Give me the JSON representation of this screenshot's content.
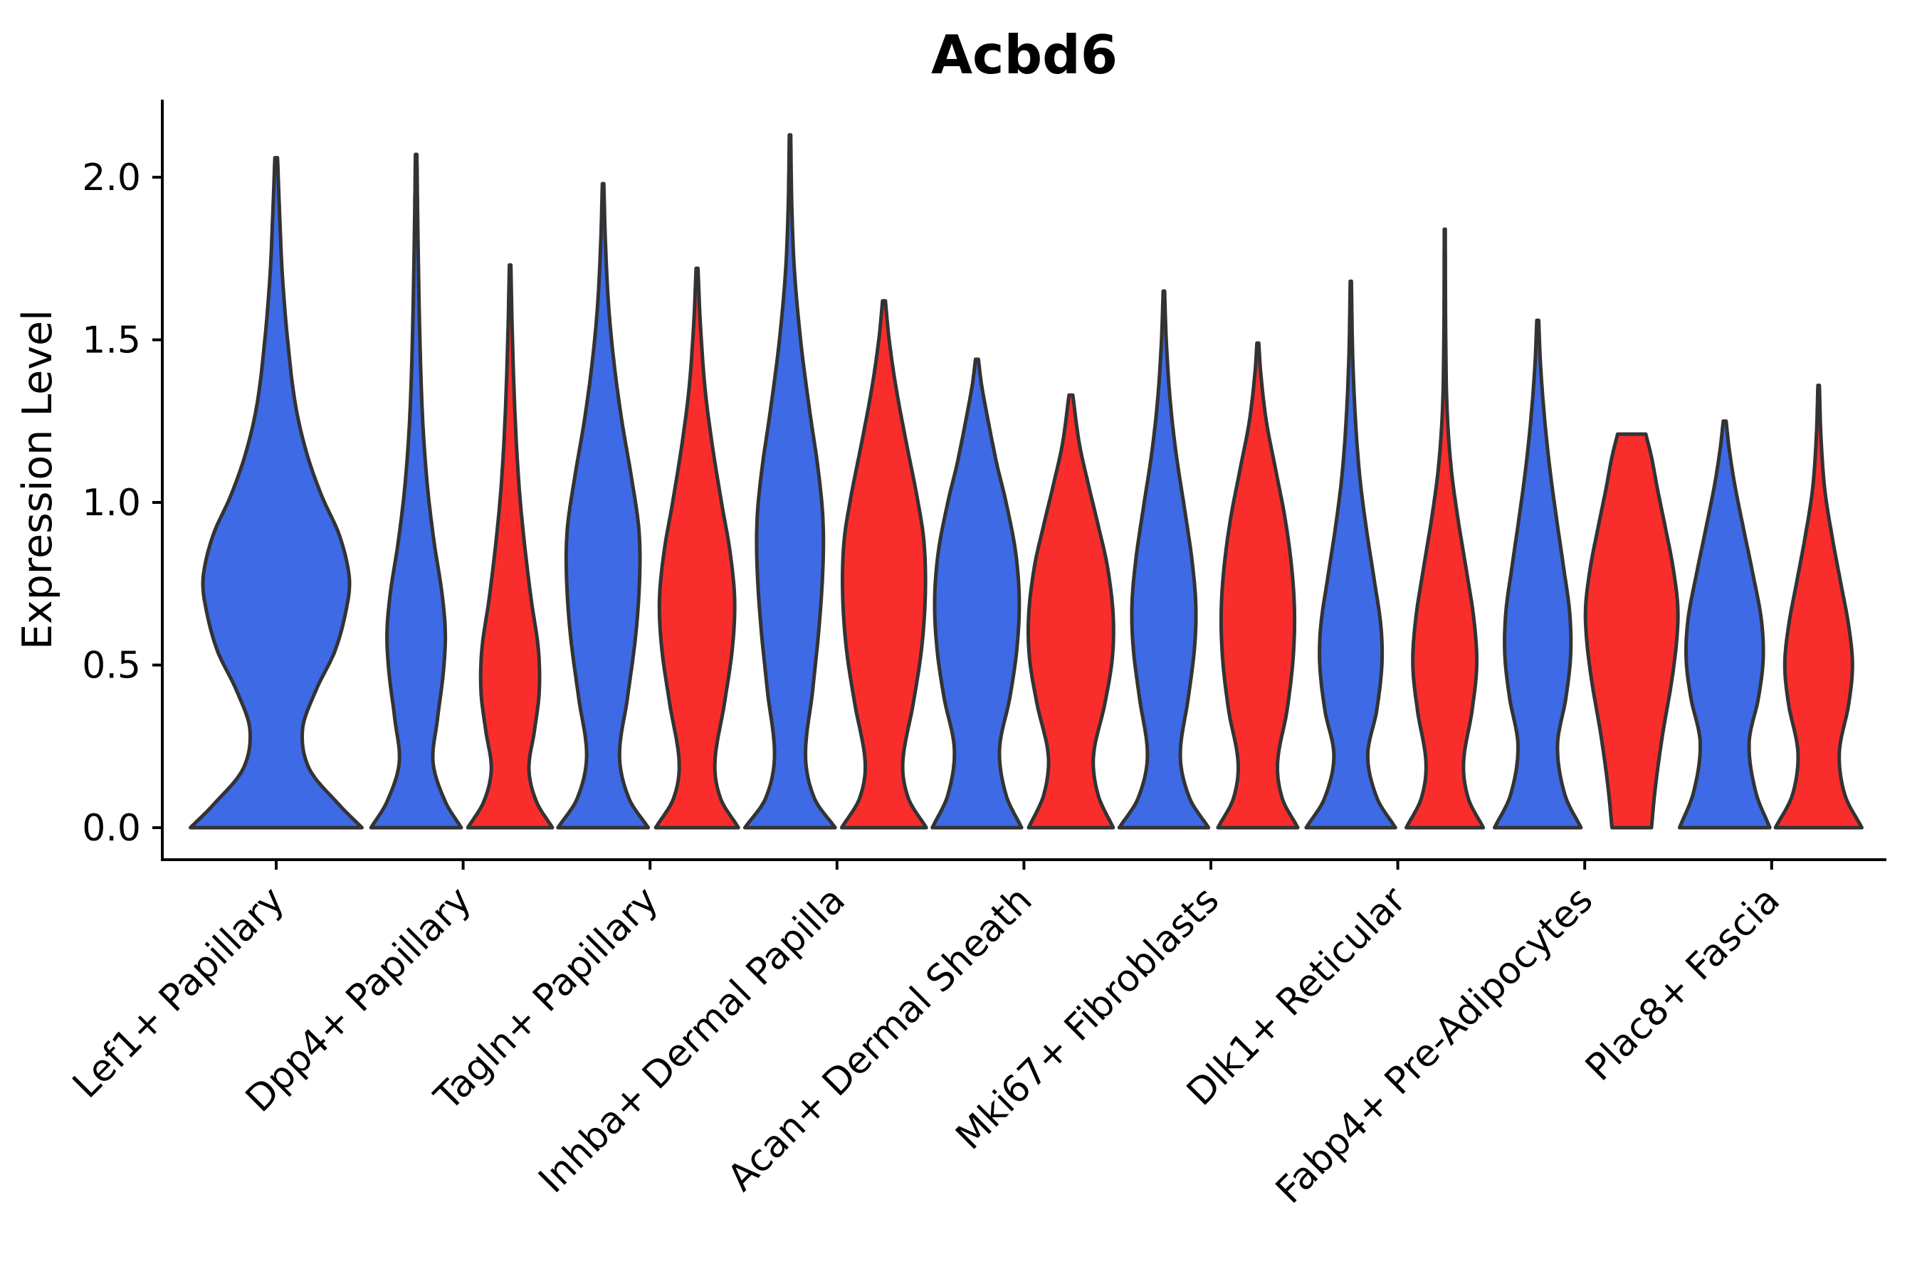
{
  "figure": {
    "title": "Acbd6",
    "ylabel": "Expression Level"
  },
  "chart_data": {
    "type": "violin",
    "title": "Acbd6",
    "xlabel": "",
    "ylabel": "Expression Level",
    "legend": "none",
    "grid": false,
    "background": "#FFFFFF",
    "edge_color": "#333333",
    "axis_color": "#000000",
    "ylim": [
      -0.17,
      2.24
    ],
    "yticks": [
      0.0,
      0.5,
      1.0,
      1.5,
      2.0
    ],
    "ytick_labels": [
      "0.0",
      "0.5",
      "1.0",
      "1.5",
      "2.0"
    ],
    "categories": [
      "Lef1+ Papillary",
      "Dpp4+ Papillary",
      "Tagln+ Papillary",
      "Inhba+ Dermal Papilla",
      "Acan+ Dermal Sheath",
      "Mki67+ Fibroblasts",
      "Dlk1+ Reticular",
      "Fabp4+ Pre-Adipocytes",
      "Plac8+ Fascia"
    ],
    "groups": [
      {
        "name": "blue",
        "color": "#3E6AE5"
      },
      {
        "name": "red",
        "color": "#FA2D2D"
      }
    ],
    "violins": [
      {
        "category": "Lef1+ Papillary",
        "group": "blue",
        "placement": "full",
        "max_expression": 2.06,
        "profile": [
          [
            0,
            0.98
          ],
          [
            0.07,
            0.72
          ],
          [
            0.18,
            0.38
          ],
          [
            0.3,
            0.3
          ],
          [
            0.42,
            0.45
          ],
          [
            0.55,
            0.68
          ],
          [
            0.7,
            0.82
          ],
          [
            0.78,
            0.83
          ],
          [
            0.9,
            0.72
          ],
          [
            1.02,
            0.52
          ],
          [
            1.15,
            0.35
          ],
          [
            1.3,
            0.22
          ],
          [
            1.5,
            0.13
          ],
          [
            1.7,
            0.07
          ],
          [
            1.88,
            0.04
          ],
          [
            2.06,
            0.015
          ]
        ]
      },
      {
        "category": "Dpp4+ Papillary",
        "group": "blue",
        "placement": "left",
        "max_expression": 2.07,
        "profile": [
          [
            0,
            0.96
          ],
          [
            0.08,
            0.62
          ],
          [
            0.2,
            0.36
          ],
          [
            0.33,
            0.45
          ],
          [
            0.48,
            0.58
          ],
          [
            0.6,
            0.62
          ],
          [
            0.72,
            0.55
          ],
          [
            0.88,
            0.38
          ],
          [
            1.05,
            0.24
          ],
          [
            1.25,
            0.14
          ],
          [
            1.5,
            0.08
          ],
          [
            1.8,
            0.04
          ],
          [
            2.07,
            0.015
          ]
        ]
      },
      {
        "category": "Dpp4+ Papillary",
        "group": "red",
        "placement": "right",
        "max_expression": 1.73,
        "profile": [
          [
            0,
            0.9
          ],
          [
            0.08,
            0.56
          ],
          [
            0.18,
            0.4
          ],
          [
            0.3,
            0.52
          ],
          [
            0.42,
            0.62
          ],
          [
            0.55,
            0.6
          ],
          [
            0.7,
            0.45
          ],
          [
            0.88,
            0.3
          ],
          [
            1.05,
            0.19
          ],
          [
            1.25,
            0.11
          ],
          [
            1.5,
            0.05
          ],
          [
            1.73,
            0.015
          ]
        ]
      },
      {
        "category": "Tagln+ Papillary",
        "group": "blue",
        "placement": "left",
        "max_expression": 1.98,
        "profile": [
          [
            0,
            0.96
          ],
          [
            0.09,
            0.55
          ],
          [
            0.22,
            0.35
          ],
          [
            0.4,
            0.52
          ],
          [
            0.6,
            0.7
          ],
          [
            0.78,
            0.78
          ],
          [
            0.92,
            0.76
          ],
          [
            1.08,
            0.6
          ],
          [
            1.25,
            0.4
          ],
          [
            1.42,
            0.24
          ],
          [
            1.6,
            0.12
          ],
          [
            1.8,
            0.05
          ],
          [
            1.98,
            0.015
          ]
        ]
      },
      {
        "category": "Tagln+ Papillary",
        "group": "red",
        "placement": "right",
        "max_expression": 1.72,
        "profile": [
          [
            0,
            0.88
          ],
          [
            0.09,
            0.5
          ],
          [
            0.2,
            0.38
          ],
          [
            0.38,
            0.58
          ],
          [
            0.55,
            0.75
          ],
          [
            0.7,
            0.8
          ],
          [
            0.85,
            0.7
          ],
          [
            1.0,
            0.52
          ],
          [
            1.18,
            0.32
          ],
          [
            1.35,
            0.17
          ],
          [
            1.55,
            0.07
          ],
          [
            1.72,
            0.02
          ]
        ]
      },
      {
        "category": "Inhba+ Dermal Papilla",
        "group": "blue",
        "placement": "left",
        "max_expression": 2.13,
        "profile": [
          [
            0,
            0.96
          ],
          [
            0.09,
            0.52
          ],
          [
            0.22,
            0.33
          ],
          [
            0.42,
            0.48
          ],
          [
            0.62,
            0.62
          ],
          [
            0.8,
            0.7
          ],
          [
            0.95,
            0.7
          ],
          [
            1.1,
            0.6
          ],
          [
            1.28,
            0.42
          ],
          [
            1.48,
            0.24
          ],
          [
            1.7,
            0.1
          ],
          [
            1.9,
            0.04
          ],
          [
            2.13,
            0.015
          ]
        ]
      },
      {
        "category": "Inhba+ Dermal Papilla",
        "group": "red",
        "placement": "right",
        "max_expression": 1.62,
        "profile": [
          [
            0,
            0.9
          ],
          [
            0.09,
            0.52
          ],
          [
            0.2,
            0.4
          ],
          [
            0.38,
            0.62
          ],
          [
            0.55,
            0.8
          ],
          [
            0.72,
            0.88
          ],
          [
            0.88,
            0.85
          ],
          [
            1.02,
            0.7
          ],
          [
            1.18,
            0.48
          ],
          [
            1.35,
            0.26
          ],
          [
            1.5,
            0.11
          ],
          [
            1.62,
            0.03
          ]
        ]
      },
      {
        "category": "Acan+ Dermal Sheath",
        "group": "blue",
        "placement": "left",
        "max_expression": 1.44,
        "profile": [
          [
            0,
            0.95
          ],
          [
            0.1,
            0.62
          ],
          [
            0.24,
            0.48
          ],
          [
            0.4,
            0.7
          ],
          [
            0.55,
            0.85
          ],
          [
            0.7,
            0.9
          ],
          [
            0.85,
            0.82
          ],
          [
            1.0,
            0.62
          ],
          [
            1.12,
            0.42
          ],
          [
            1.25,
            0.24
          ],
          [
            1.36,
            0.1
          ],
          [
            1.44,
            0.03
          ]
        ]
      },
      {
        "category": "Acan+ Dermal Sheath",
        "group": "red",
        "placement": "right",
        "max_expression": 1.33,
        "profile": [
          [
            0,
            0.9
          ],
          [
            0.1,
            0.58
          ],
          [
            0.22,
            0.48
          ],
          [
            0.38,
            0.72
          ],
          [
            0.52,
            0.88
          ],
          [
            0.65,
            0.9
          ],
          [
            0.8,
            0.78
          ],
          [
            0.93,
            0.58
          ],
          [
            1.05,
            0.38
          ],
          [
            1.18,
            0.18
          ],
          [
            1.33,
            0.04
          ]
        ]
      },
      {
        "category": "Mki67+ Fibroblasts",
        "group": "blue",
        "placement": "left",
        "max_expression": 1.65,
        "profile": [
          [
            0,
            0.95
          ],
          [
            0.09,
            0.55
          ],
          [
            0.22,
            0.35
          ],
          [
            0.4,
            0.52
          ],
          [
            0.55,
            0.65
          ],
          [
            0.68,
            0.68
          ],
          [
            0.82,
            0.6
          ],
          [
            0.98,
            0.44
          ],
          [
            1.15,
            0.26
          ],
          [
            1.32,
            0.13
          ],
          [
            1.5,
            0.05
          ],
          [
            1.65,
            0.015
          ]
        ]
      },
      {
        "category": "Mki67+ Fibroblasts",
        "group": "red",
        "placement": "right",
        "max_expression": 1.49,
        "profile": [
          [
            0,
            0.85
          ],
          [
            0.09,
            0.52
          ],
          [
            0.2,
            0.42
          ],
          [
            0.36,
            0.62
          ],
          [
            0.52,
            0.75
          ],
          [
            0.66,
            0.78
          ],
          [
            0.8,
            0.72
          ],
          [
            0.95,
            0.58
          ],
          [
            1.1,
            0.38
          ],
          [
            1.25,
            0.18
          ],
          [
            1.4,
            0.06
          ],
          [
            1.49,
            0.02
          ]
        ]
      },
      {
        "category": "Dlk1+ Reticular",
        "group": "blue",
        "placement": "left",
        "max_expression": 1.68,
        "profile": [
          [
            0,
            0.95
          ],
          [
            0.09,
            0.56
          ],
          [
            0.22,
            0.36
          ],
          [
            0.36,
            0.55
          ],
          [
            0.5,
            0.66
          ],
          [
            0.62,
            0.64
          ],
          [
            0.76,
            0.5
          ],
          [
            0.92,
            0.33
          ],
          [
            1.08,
            0.19
          ],
          [
            1.25,
            0.1
          ],
          [
            1.45,
            0.04
          ],
          [
            1.68,
            0.012
          ]
        ]
      },
      {
        "category": "Dlk1+ Reticular",
        "group": "red",
        "placement": "right",
        "max_expression": 1.84,
        "profile": [
          [
            0,
            0.82
          ],
          [
            0.09,
            0.5
          ],
          [
            0.2,
            0.4
          ],
          [
            0.36,
            0.58
          ],
          [
            0.5,
            0.68
          ],
          [
            0.64,
            0.62
          ],
          [
            0.8,
            0.45
          ],
          [
            0.95,
            0.28
          ],
          [
            1.1,
            0.14
          ],
          [
            1.28,
            0.05
          ],
          [
            1.5,
            0.02
          ],
          [
            1.84,
            0.01
          ]
        ]
      },
      {
        "category": "Fabp4+ Pre-Adipocytes",
        "group": "blue",
        "placement": "left",
        "max_expression": 1.56,
        "profile": [
          [
            0,
            0.92
          ],
          [
            0.1,
            0.58
          ],
          [
            0.25,
            0.42
          ],
          [
            0.4,
            0.6
          ],
          [
            0.53,
            0.7
          ],
          [
            0.66,
            0.68
          ],
          [
            0.8,
            0.55
          ],
          [
            0.95,
            0.4
          ],
          [
            1.1,
            0.26
          ],
          [
            1.25,
            0.15
          ],
          [
            1.42,
            0.06
          ],
          [
            1.56,
            0.02
          ]
        ]
      },
      {
        "category": "Fabp4+ Pre-Adipocytes",
        "group": "red",
        "placement": "right",
        "max_expression": 1.21,
        "profile": [
          [
            0,
            0.42
          ],
          [
            0.12,
            0.5
          ],
          [
            0.28,
            0.65
          ],
          [
            0.45,
            0.85
          ],
          [
            0.58,
            0.96
          ],
          [
            0.68,
            0.98
          ],
          [
            0.8,
            0.88
          ],
          [
            0.92,
            0.72
          ],
          [
            1.04,
            0.55
          ],
          [
            1.14,
            0.42
          ],
          [
            1.21,
            0.3
          ]
        ]
      },
      {
        "category": "Plac8+ Fascia",
        "group": "blue",
        "placement": "left",
        "max_expression": 1.25,
        "profile": [
          [
            0,
            0.96
          ],
          [
            0.11,
            0.66
          ],
          [
            0.26,
            0.52
          ],
          [
            0.4,
            0.72
          ],
          [
            0.52,
            0.82
          ],
          [
            0.64,
            0.78
          ],
          [
            0.78,
            0.6
          ],
          [
            0.92,
            0.4
          ],
          [
            1.05,
            0.22
          ],
          [
            1.16,
            0.1
          ],
          [
            1.25,
            0.03
          ]
        ]
      },
      {
        "category": "Plac8+ Fascia",
        "group": "red",
        "placement": "right",
        "max_expression": 1.36,
        "profile": [
          [
            0,
            0.92
          ],
          [
            0.1,
            0.56
          ],
          [
            0.23,
            0.44
          ],
          [
            0.38,
            0.64
          ],
          [
            0.5,
            0.72
          ],
          [
            0.62,
            0.64
          ],
          [
            0.76,
            0.46
          ],
          [
            0.9,
            0.28
          ],
          [
            1.04,
            0.13
          ],
          [
            1.2,
            0.05
          ],
          [
            1.36,
            0.015
          ]
        ]
      }
    ]
  }
}
